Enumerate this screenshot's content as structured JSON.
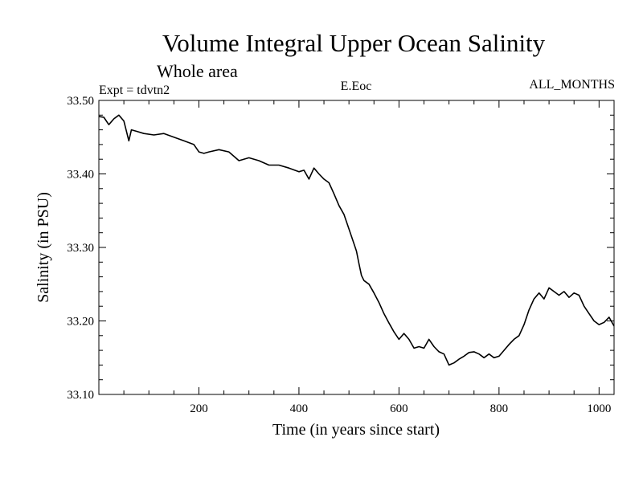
{
  "chart_data": {
    "type": "line",
    "title": "Volume Integral Upper Ocean Salinity",
    "subtitle": "Whole area",
    "header_left": "Expt = tdvtn2",
    "header_center": "E.Eoc",
    "header_right": "ALL_MONTHS",
    "xlabel": "Time (in years since start)",
    "ylabel": "Salinity (in PSU)",
    "xlim": [
      0,
      1030
    ],
    "ylim": [
      33.1,
      33.5
    ],
    "x_ticks": [
      200,
      400,
      600,
      800,
      1000
    ],
    "x_tick_labels": [
      "200",
      "400",
      "600",
      "800",
      "1000"
    ],
    "y_ticks": [
      33.1,
      33.2,
      33.3,
      33.4,
      33.5
    ],
    "y_tick_labels": [
      "33.10",
      "33.20",
      "33.30",
      "33.40",
      "33.50"
    ],
    "x_minor_step": 50,
    "y_minor_step": 0.02,
    "grid": false,
    "line_color": "#000000",
    "series": [
      {
        "name": "Salinity",
        "x": [
          0,
          10,
          20,
          30,
          40,
          50,
          60,
          65,
          75,
          90,
          110,
          130,
          150,
          170,
          190,
          200,
          210,
          220,
          240,
          260,
          280,
          300,
          320,
          340,
          360,
          380,
          400,
          410,
          420,
          430,
          440,
          450,
          460,
          470,
          480,
          490,
          500,
          510,
          515,
          520,
          525,
          530,
          540,
          550,
          560,
          570,
          580,
          590,
          600,
          610,
          620,
          630,
          640,
          650,
          660,
          670,
          680,
          690,
          700,
          710,
          720,
          730,
          740,
          750,
          760,
          770,
          780,
          790,
          800,
          810,
          820,
          830,
          840,
          850,
          860,
          870,
          880,
          890,
          900,
          910,
          920,
          930,
          940,
          950,
          960,
          970,
          980,
          990,
          1000,
          1010,
          1020,
          1030
        ],
        "values": [
          33.478,
          33.477,
          33.467,
          33.475,
          33.48,
          33.472,
          33.445,
          33.46,
          33.458,
          33.455,
          33.453,
          33.455,
          33.45,
          33.445,
          33.44,
          33.43,
          33.428,
          33.43,
          33.433,
          33.43,
          33.418,
          33.422,
          33.418,
          33.412,
          33.412,
          33.408,
          33.403,
          33.405,
          33.393,
          33.408,
          33.4,
          33.393,
          33.388,
          33.373,
          33.357,
          33.345,
          33.325,
          33.305,
          33.295,
          33.278,
          33.262,
          33.255,
          33.25,
          33.238,
          33.225,
          33.21,
          33.197,
          33.185,
          33.175,
          33.183,
          33.175,
          33.163,
          33.165,
          33.163,
          33.175,
          33.165,
          33.158,
          33.155,
          33.14,
          33.143,
          33.148,
          33.152,
          33.157,
          33.158,
          33.155,
          33.15,
          33.155,
          33.15,
          33.152,
          33.16,
          33.168,
          33.175,
          33.18,
          33.195,
          33.215,
          33.23,
          33.238,
          33.23,
          33.245,
          33.24,
          33.235,
          33.24,
          33.232,
          33.238,
          33.235,
          33.22,
          33.21,
          33.2,
          33.195,
          33.198,
          33.205,
          33.193
        ]
      }
    ]
  }
}
